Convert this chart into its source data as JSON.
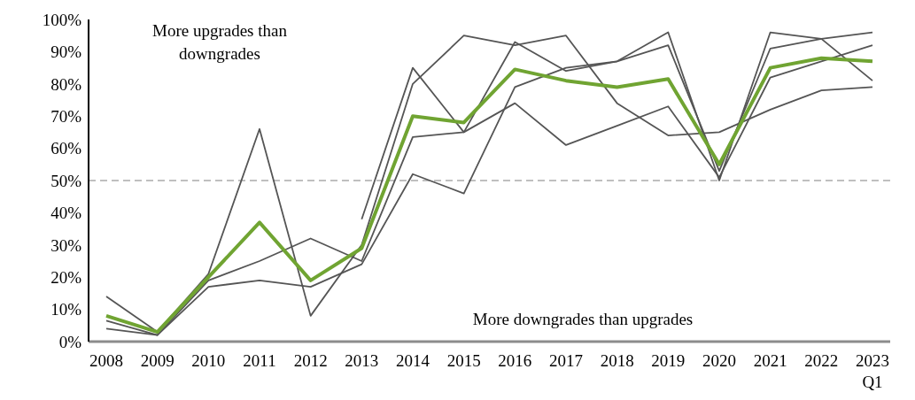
{
  "chart_data": {
    "type": "line",
    "categories": [
      "2008",
      "2009",
      "2010",
      "2011",
      "2012",
      "2013",
      "2014",
      "2015",
      "2016",
      "2017",
      "2018",
      "2019",
      "2020",
      "2021",
      "2022",
      "2023\nQ1"
    ],
    "series": [
      {
        "color": "#555555",
        "values": [
          14,
          3,
          21,
          66,
          8,
          30,
          80,
          95,
          92,
          95,
          74,
          64,
          65,
          72,
          78,
          79
        ]
      },
      {
        "color": "#555555",
        "values": [
          6.5,
          2,
          19,
          25,
          32,
          25,
          63.5,
          65,
          74,
          61,
          67,
          73,
          51,
          82,
          87,
          92
        ]
      },
      {
        "color": "#555555",
        "values": [
          4,
          2,
          17,
          19,
          17,
          24,
          52,
          46,
          79,
          85,
          87,
          92,
          53,
          91,
          94,
          96
        ]
      },
      {
        "color": "#555555",
        "values": [
          null,
          null,
          null,
          null,
          null,
          38,
          85,
          65,
          93,
          84,
          87,
          96,
          50,
          96,
          94,
          81
        ]
      },
      {
        "color": "#70a432",
        "values": [
          8,
          3,
          20,
          37,
          19,
          29,
          70,
          68,
          84.5,
          81,
          79,
          81.5,
          55,
          85,
          88,
          87
        ]
      }
    ],
    "ylim": [
      0,
      100
    ],
    "yticks": [
      {
        "value": 0,
        "label": "0%"
      },
      {
        "value": 10,
        "label": "10%"
      },
      {
        "value": 20,
        "label": "20%"
      },
      {
        "value": 30,
        "label": "30%"
      },
      {
        "value": 40,
        "label": "40%"
      },
      {
        "value": 50,
        "label": "50%"
      },
      {
        "value": 60,
        "label": "60%"
      },
      {
        "value": 70,
        "label": "70%"
      },
      {
        "value": 80,
        "label": "80%"
      },
      {
        "value": 90,
        "label": "90%"
      },
      {
        "value": 100,
        "label": "100%"
      }
    ],
    "ref_lines": [
      {
        "axis": "y",
        "value": 50,
        "color": "#bfbfbf",
        "line_style": "dashed"
      }
    ],
    "annotations": [
      "More upgrades than downgrades",
      "More downgrades than upgrades"
    ],
    "grid": false,
    "marker": "none",
    "line_style": "solid"
  }
}
